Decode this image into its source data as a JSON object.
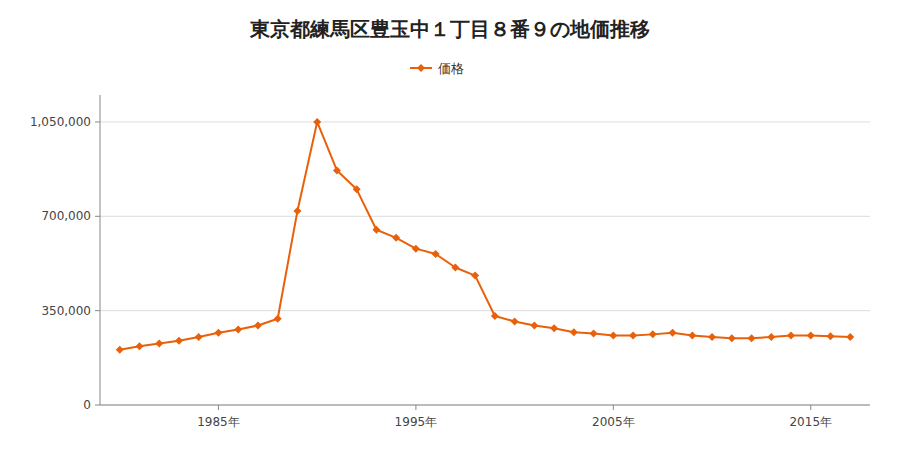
{
  "chart_data": {
    "type": "line",
    "title": "東京都練馬区豊玉中１丁目８番９の地価推移",
    "x": [
      1980,
      1981,
      1982,
      1983,
      1984,
      1985,
      1986,
      1987,
      1988,
      1989,
      1990,
      1991,
      1992,
      1993,
      1994,
      1995,
      1996,
      1997,
      1998,
      1999,
      2000,
      2001,
      2002,
      2003,
      2004,
      2005,
      2006,
      2007,
      2008,
      2009,
      2010,
      2011,
      2012,
      2013,
      2014,
      2015,
      2016,
      2017
    ],
    "series": [
      {
        "name": "価格",
        "color": "#E8610A",
        "marker": "diamond",
        "values": [
          205000,
          218000,
          228000,
          238000,
          252000,
          268000,
          280000,
          295000,
          320000,
          720000,
          1050000,
          870000,
          800000,
          650000,
          620000,
          580000,
          560000,
          510000,
          480000,
          330000,
          310000,
          295000,
          285000,
          270000,
          265000,
          258000,
          258000,
          262000,
          268000,
          258000,
          252000,
          248000,
          248000,
          252000,
          258000,
          258000,
          255000,
          252000
        ]
      }
    ],
    "xlim": [
      1979,
      2018
    ],
    "xticks": [
      {
        "value": 1985,
        "label": "1985年"
      },
      {
        "value": 1995,
        "label": "1995年"
      },
      {
        "value": 2005,
        "label": "2005年"
      },
      {
        "value": 2015,
        "label": "2015年"
      }
    ],
    "ylim": [
      0,
      1150000
    ],
    "yticks": [
      0,
      {
        "value": 350000,
        "label": "350,000"
      },
      {
        "value": 700000,
        "label": "700,000"
      },
      {
        "value": 1050000,
        "label": "1,050,000"
      }
    ],
    "grid": "y",
    "legend": "top"
  }
}
